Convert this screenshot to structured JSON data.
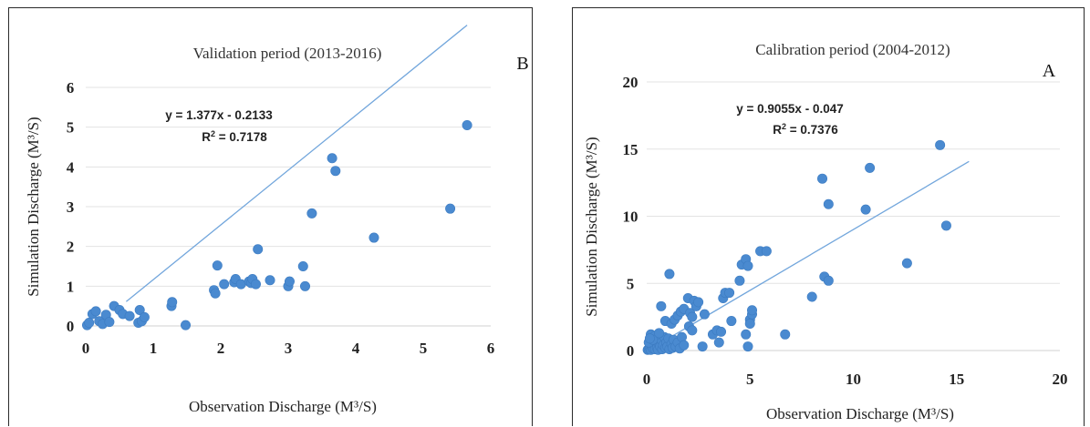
{
  "chart_data": [
    {
      "type": "scatter",
      "panel": "B",
      "title": "Validation period (2013-2016)",
      "letter": "B",
      "xlabel": "Observation Discharge (M³/S)",
      "ylabel": "Simulation Discharge (M³/S)",
      "xlim": [
        0,
        6
      ],
      "ylim": [
        0,
        6
      ],
      "xticks": [
        "0",
        "1",
        "2",
        "3",
        "4",
        "5",
        "6"
      ],
      "yticks": [
        "0",
        "1",
        "2",
        "3",
        "4",
        "5",
        "6"
      ],
      "grid": "horizontal",
      "equation": "y = 1.377x - 0.2133",
      "r2_prefix": "R",
      "r2_value": " = 0.7178",
      "trendline": {
        "slope": 1.377,
        "intercept": -0.2133,
        "x_start": 0.6,
        "x_end": 5.65
      },
      "points": [
        [
          0.02,
          0.02
        ],
        [
          0.05,
          0.08
        ],
        [
          0.1,
          0.3
        ],
        [
          0.15,
          0.37
        ],
        [
          0.2,
          0.12
        ],
        [
          0.25,
          0.05
        ],
        [
          0.3,
          0.28
        ],
        [
          0.35,
          0.1
        ],
        [
          0.42,
          0.5
        ],
        [
          0.5,
          0.4
        ],
        [
          0.55,
          0.3
        ],
        [
          0.65,
          0.25
        ],
        [
          0.78,
          0.08
        ],
        [
          0.8,
          0.4
        ],
        [
          0.83,
          0.12
        ],
        [
          0.87,
          0.22
        ],
        [
          1.27,
          0.5
        ],
        [
          1.28,
          0.6
        ],
        [
          1.48,
          0.02
        ],
        [
          1.9,
          0.9
        ],
        [
          1.92,
          0.82
        ],
        [
          1.95,
          1.52
        ],
        [
          2.05,
          1.05
        ],
        [
          2.2,
          1.1
        ],
        [
          2.22,
          1.18
        ],
        [
          2.3,
          1.05
        ],
        [
          2.42,
          1.12
        ],
        [
          2.45,
          1.08
        ],
        [
          2.47,
          1.18
        ],
        [
          2.52,
          1.05
        ],
        [
          2.55,
          1.93
        ],
        [
          2.73,
          1.15
        ],
        [
          3.0,
          1.0
        ],
        [
          3.02,
          1.12
        ],
        [
          3.22,
          1.5
        ],
        [
          3.25,
          1.0
        ],
        [
          3.35,
          2.83
        ],
        [
          3.65,
          4.22
        ],
        [
          3.7,
          3.9
        ],
        [
          4.27,
          2.22
        ],
        [
          5.4,
          2.95
        ],
        [
          5.65,
          5.05
        ]
      ]
    },
    {
      "type": "scatter",
      "panel": "A",
      "title": "Calibration period (2004-2012)",
      "letter": "A",
      "xlabel": "Observation Discharge (M³/S)",
      "ylabel": "Simulation Discharge (M³/S)",
      "xlim": [
        0,
        20
      ],
      "ylim": [
        0,
        20
      ],
      "xticks": [
        "0",
        "5",
        "10",
        "15",
        "20"
      ],
      "yticks": [
        "0",
        "5",
        "10",
        "15",
        "20"
      ],
      "grid": "horizontal",
      "equation": "y = 0.9055x - 0.047",
      "r2_prefix": "R",
      "r2_value": " = 0.7376",
      "trendline": {
        "slope": 0.9055,
        "intercept": -0.047,
        "x_start": 0.2,
        "x_end": 15.6
      },
      "points": [
        [
          0.05,
          0.05
        ],
        [
          0.1,
          0.1
        ],
        [
          0.15,
          0.2
        ],
        [
          0.2,
          0.05
        ],
        [
          0.25,
          0.3
        ],
        [
          0.3,
          0.15
        ],
        [
          0.35,
          0.4
        ],
        [
          0.4,
          0.1
        ],
        [
          0.45,
          0.6
        ],
        [
          0.5,
          0.2
        ],
        [
          0.55,
          0.05
        ],
        [
          0.6,
          0.5
        ],
        [
          0.65,
          0.3
        ],
        [
          0.7,
          0.8
        ],
        [
          0.75,
          0.1
        ],
        [
          0.8,
          0.4
        ],
        [
          0.85,
          1.0
        ],
        [
          0.9,
          0.2
        ],
        [
          0.95,
          0.6
        ],
        [
          1.0,
          0.3
        ],
        [
          1.05,
          0.9
        ],
        [
          1.1,
          0.1
        ],
        [
          1.2,
          0.5
        ],
        [
          1.25,
          0.2
        ],
        [
          1.3,
          0.8
        ],
        [
          1.4,
          0.3
        ],
        [
          1.5,
          0.6
        ],
        [
          1.6,
          0.15
        ],
        [
          1.7,
          1.0
        ],
        [
          1.8,
          0.4
        ],
        [
          0.2,
          1.2
        ],
        [
          0.4,
          1.1
        ],
        [
          0.1,
          0.6
        ],
        [
          0.3,
          0.8
        ],
        [
          0.6,
          1.3
        ],
        [
          0.15,
          0.9
        ],
        [
          0.7,
          3.3
        ],
        [
          1.1,
          5.7
        ],
        [
          0.9,
          2.2
        ],
        [
          1.2,
          2.0
        ],
        [
          1.35,
          2.3
        ],
        [
          1.5,
          2.6
        ],
        [
          1.65,
          2.9
        ],
        [
          1.8,
          3.1
        ],
        [
          2.0,
          3.9
        ],
        [
          2.1,
          2.8
        ],
        [
          2.2,
          2.5
        ],
        [
          2.3,
          3.7
        ],
        [
          2.4,
          3.3
        ],
        [
          2.5,
          3.6
        ],
        [
          2.05,
          1.8
        ],
        [
          2.2,
          1.5
        ],
        [
          2.8,
          2.7
        ],
        [
          2.7,
          0.3
        ],
        [
          3.2,
          1.2
        ],
        [
          3.4,
          1.5
        ],
        [
          3.5,
          0.6
        ],
        [
          3.6,
          1.4
        ],
        [
          3.7,
          3.9
        ],
        [
          3.8,
          4.3
        ],
        [
          4.0,
          4.3
        ],
        [
          4.1,
          2.2
        ],
        [
          4.5,
          5.2
        ],
        [
          4.6,
          6.4
        ],
        [
          4.8,
          6.8
        ],
        [
          4.9,
          6.3
        ],
        [
          5.0,
          2.3
        ],
        [
          5.0,
          2.0
        ],
        [
          5.1,
          2.7
        ],
        [
          5.1,
          3.0
        ],
        [
          4.8,
          1.2
        ],
        [
          4.9,
          0.3
        ],
        [
          5.5,
          7.4
        ],
        [
          5.8,
          7.4
        ],
        [
          6.7,
          1.2
        ],
        [
          8.0,
          4.0
        ],
        [
          8.5,
          12.8
        ],
        [
          8.6,
          5.5
        ],
        [
          8.8,
          5.2
        ],
        [
          8.8,
          10.9
        ],
        [
          10.6,
          10.5
        ],
        [
          10.8,
          13.6
        ],
        [
          12.6,
          6.5
        ],
        [
          14.2,
          15.3
        ],
        [
          14.5,
          9.3
        ]
      ]
    }
  ]
}
